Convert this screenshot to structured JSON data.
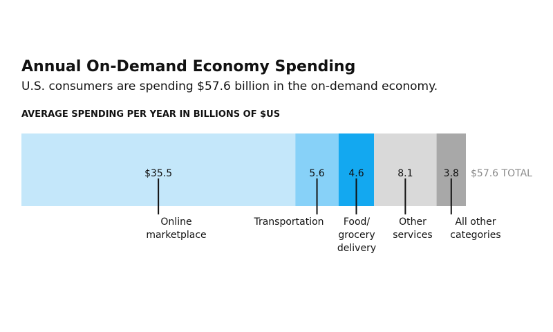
{
  "chart_data": {
    "type": "bar",
    "orientation": "horizontal-stacked",
    "title": "Annual On-Demand Economy Spending",
    "subtitle": "U.S. consumers are spending $57.6 billion in the on-demand economy.",
    "xlabel": "AVERAGE SPENDING PER YEAR IN BILLIONS OF $US",
    "ylabel": "",
    "xlim": [
      0,
      57.6
    ],
    "total_label": "$57.6 TOTAL",
    "segments": [
      {
        "name": "Online marketplace",
        "label_lines": [
          "Online",
          "marketplace"
        ],
        "value": 35.5,
        "value_label": "$35.5",
        "color": "#c4e7fa",
        "value_color": "#111111"
      },
      {
        "name": "Transportation",
        "label_lines": [
          "Transportation"
        ],
        "value": 5.6,
        "value_label": "5.6",
        "color": "#87d1f8",
        "value_color": "#111111"
      },
      {
        "name": "Food/grocery delivery",
        "label_lines": [
          "Food/",
          "grocery",
          "delivery"
        ],
        "value": 4.6,
        "value_label": "4.6",
        "color": "#13a8f0",
        "value_color": "#111111"
      },
      {
        "name": "Other services",
        "label_lines": [
          "Other",
          "services"
        ],
        "value": 8.1,
        "value_label": "8.1",
        "color": "#d9d9d9",
        "value_color": "#111111"
      },
      {
        "name": "All other categories",
        "label_lines": [
          "All other",
          "categories"
        ],
        "value": 3.8,
        "value_label": "3.8",
        "color": "#a8a8a8",
        "value_color": "#111111"
      }
    ]
  }
}
